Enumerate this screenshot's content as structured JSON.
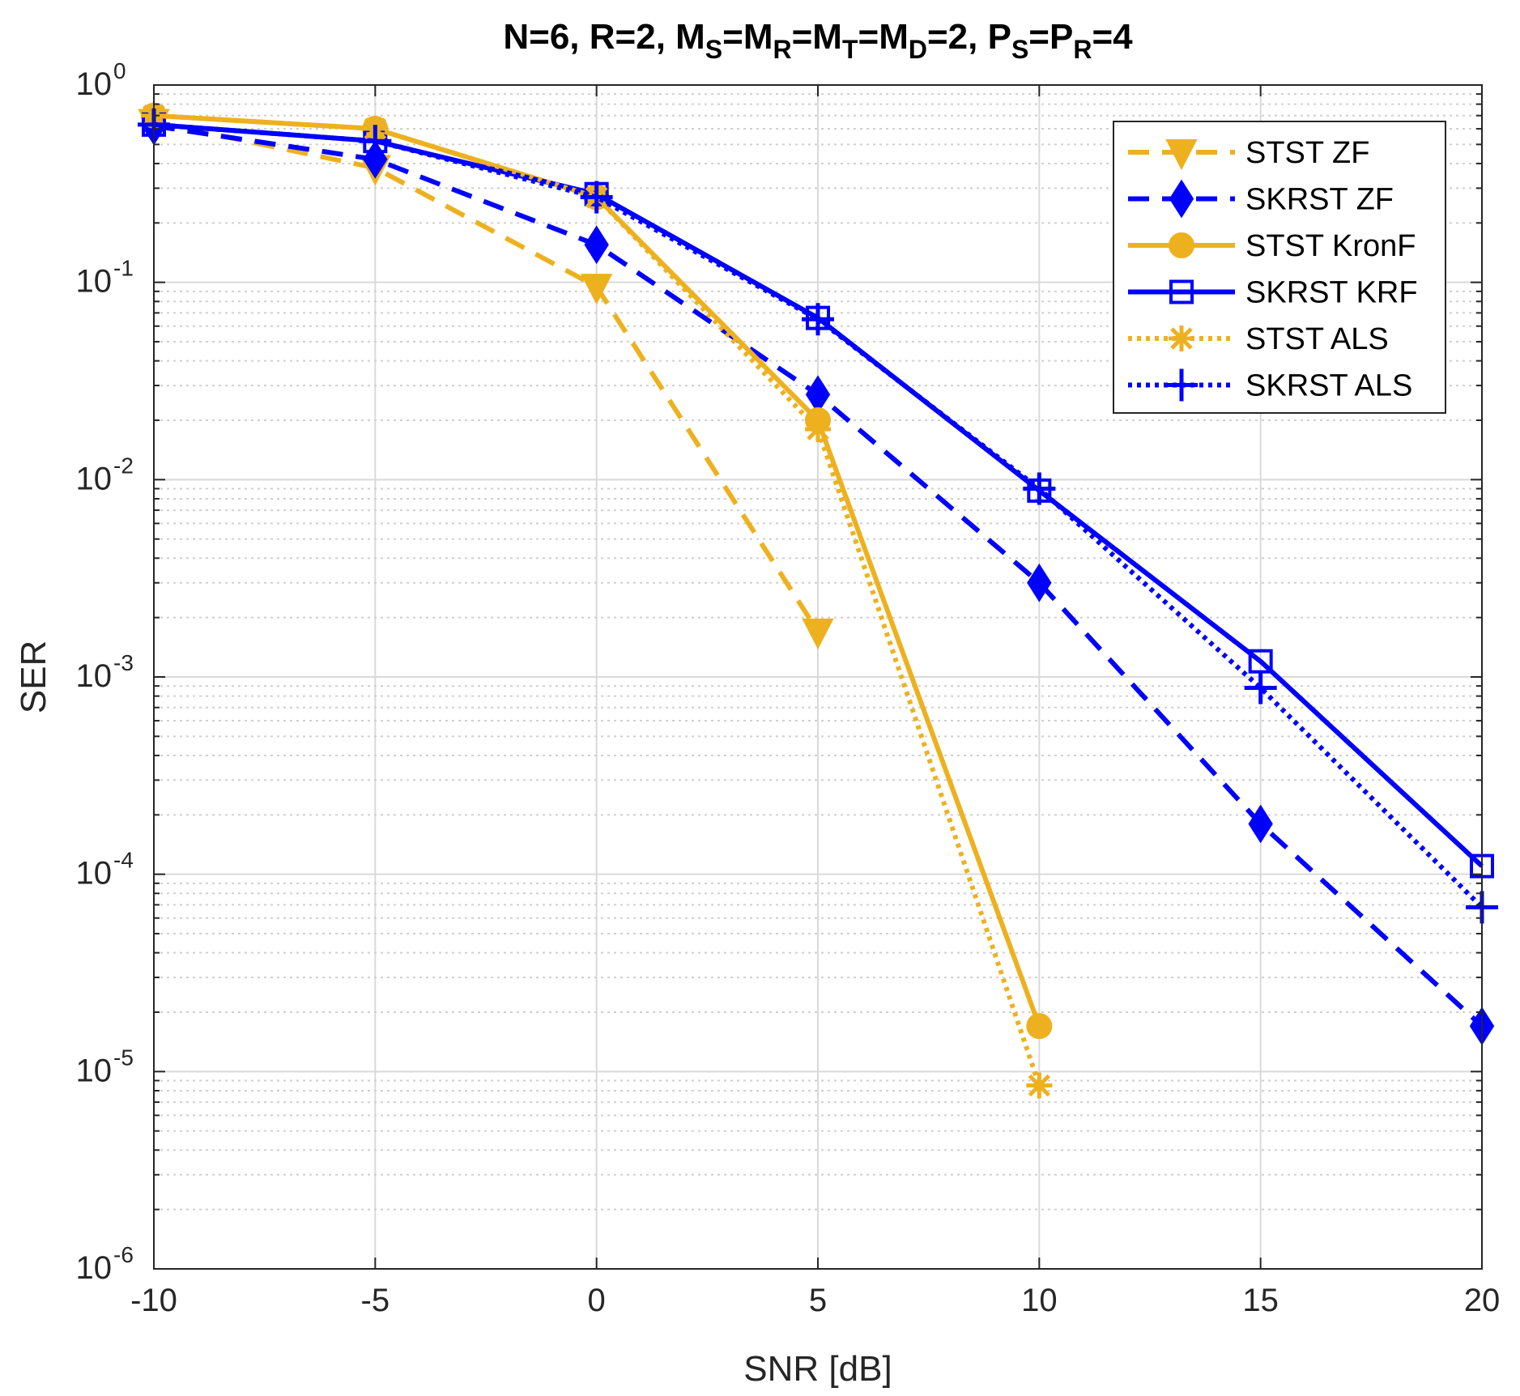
{
  "chart_data": {
    "type": "line",
    "title": {
      "runs": [
        {
          "text": "N=6,  R=2,  M",
          "sub": false
        },
        {
          "text": "S",
          "sub": true
        },
        {
          "text": "=M",
          "sub": false
        },
        {
          "text": "R",
          "sub": true
        },
        {
          "text": "=M",
          "sub": false
        },
        {
          "text": "T",
          "sub": true
        },
        {
          "text": "=M",
          "sub": false
        },
        {
          "text": "D",
          "sub": true
        },
        {
          "text": "=2,  P",
          "sub": false
        },
        {
          "text": "S",
          "sub": true
        },
        {
          "text": "=P",
          "sub": false
        },
        {
          "text": "R",
          "sub": true
        },
        {
          "text": "=4",
          "sub": false
        }
      ]
    },
    "xlabel": "SNR [dB]",
    "ylabel": "SER",
    "xscale": "linear",
    "yscale": "log",
    "xlim": [
      -10,
      20
    ],
    "ylim": [
      1e-06,
      1
    ],
    "xticks": [
      -10,
      -5,
      0,
      5,
      10,
      15,
      20
    ],
    "xtick_labels": [
      "-10",
      "-5",
      "0",
      "5",
      "10",
      "15",
      "20"
    ],
    "yticks": [
      {
        "value": 1e-06,
        "base": "10",
        "exp": "-6"
      },
      {
        "value": 1e-05,
        "base": "10",
        "exp": "-5"
      },
      {
        "value": 0.0001,
        "base": "10",
        "exp": "-4"
      },
      {
        "value": 0.001,
        "base": "10",
        "exp": "-3"
      },
      {
        "value": 0.01,
        "base": "10",
        "exp": "-2"
      },
      {
        "value": 0.1,
        "base": "10",
        "exp": "-1"
      },
      {
        "value": 1,
        "base": "10",
        "exp": "0"
      }
    ],
    "grid": true,
    "minor_grid": true,
    "legend_position": "top-right",
    "series": [
      {
        "name": "STST ZF",
        "color": "#EDB120",
        "line": "dashed",
        "marker": "triangle-down",
        "x": [
          -10,
          -5,
          0,
          5
        ],
        "y": [
          0.65,
          0.38,
          0.095,
          0.0017
        ]
      },
      {
        "name": "SKRST ZF",
        "color": "#0000FF",
        "line": "dashed",
        "marker": "diamond",
        "x": [
          -10,
          -5,
          0,
          5,
          10,
          15,
          20
        ],
        "y": [
          0.62,
          0.42,
          0.155,
          0.027,
          0.003,
          0.00018,
          1.7e-05
        ]
      },
      {
        "name": "STST KronF",
        "color": "#EDB120",
        "line": "solid",
        "marker": "circle",
        "x": [
          -10,
          -5,
          0,
          5,
          10
        ],
        "y": [
          0.7,
          0.6,
          0.27,
          0.02,
          1.7e-05
        ]
      },
      {
        "name": "SKRST KRF",
        "color": "#0000FF",
        "line": "solid",
        "marker": "square",
        "x": [
          -10,
          -5,
          0,
          5,
          10,
          15,
          20
        ],
        "y": [
          0.63,
          0.52,
          0.28,
          0.066,
          0.0088,
          0.0012,
          0.00011
        ]
      },
      {
        "name": "STST ALS",
        "color": "#EDB120",
        "line": "dotted",
        "marker": "asterisk",
        "x": [
          -10,
          -5,
          0,
          5,
          10
        ],
        "y": [
          0.7,
          0.6,
          0.27,
          0.018,
          8.5e-06
        ]
      },
      {
        "name": "SKRST ALS",
        "color": "#0000FF",
        "line": "dotted",
        "marker": "plus",
        "x": [
          -10,
          -5,
          0,
          5,
          10,
          15,
          20
        ],
        "y": [
          0.63,
          0.52,
          0.27,
          0.065,
          0.009,
          0.00088,
          6.8e-05
        ]
      }
    ]
  }
}
